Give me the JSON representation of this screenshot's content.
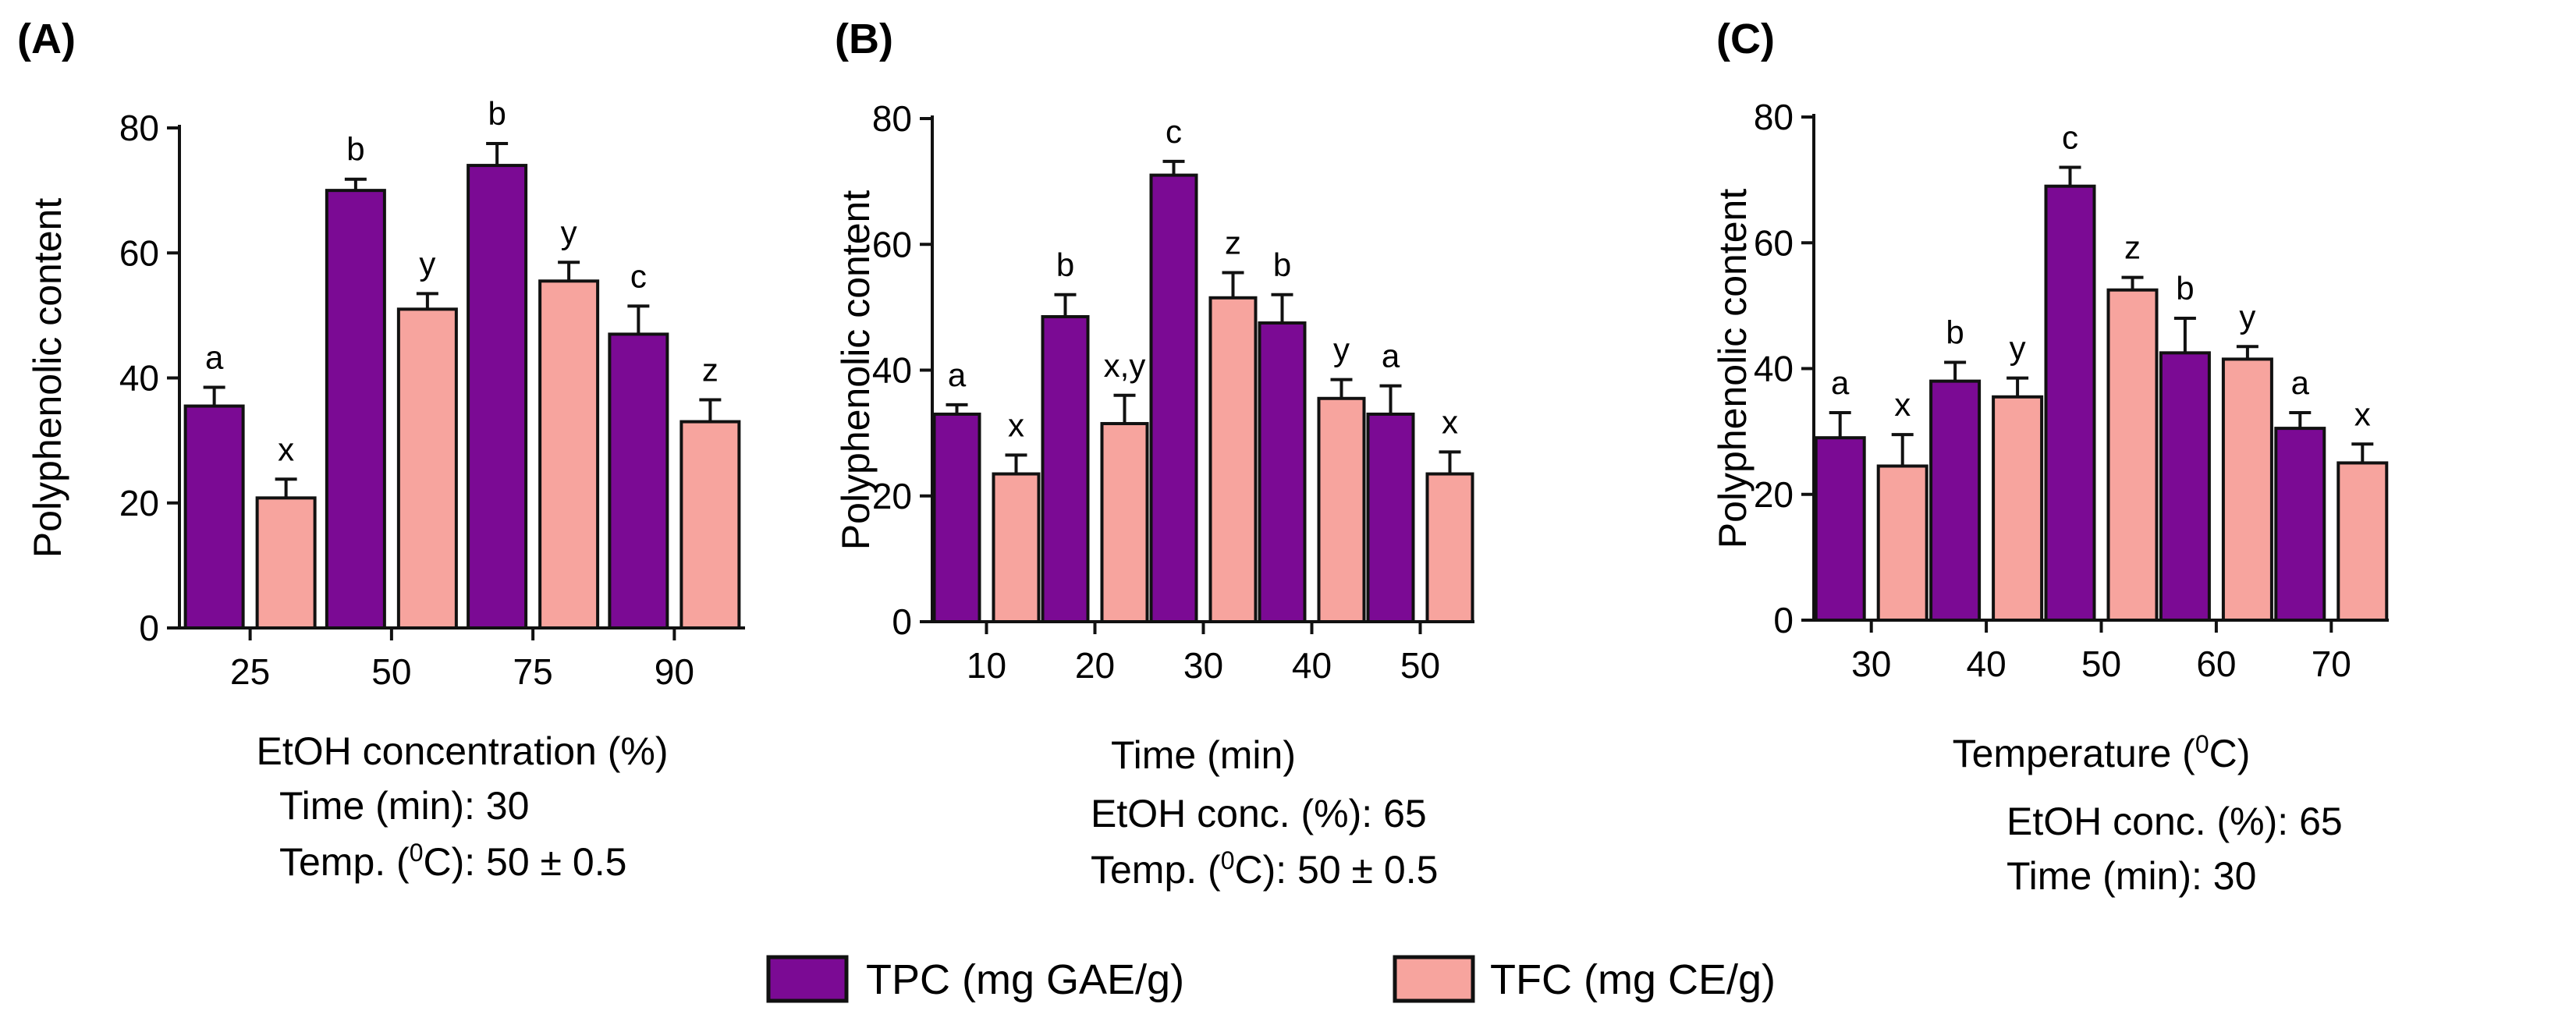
{
  "chart_data": [
    {
      "type": "bar",
      "panel": "(A)",
      "ylabel": "Polyphenolic content",
      "xlabel": "EtOH concentration (%)",
      "ylim": [
        0,
        80
      ],
      "yticks": [
        "0",
        "20",
        "40",
        "60",
        "80"
      ],
      "categories": [
        "25",
        "50",
        "75",
        "90"
      ],
      "series": [
        {
          "name": "TPC (mg GAE/g)",
          "values": [
            35.5,
            70,
            74,
            47
          ],
          "errors": [
            3,
            1.8,
            3.5,
            4.5
          ],
          "letters": [
            "a",
            "b",
            "b",
            "c"
          ]
        },
        {
          "name": "TFC (mg CE/g)",
          "values": [
            20.8,
            51,
            55.5,
            33
          ],
          "errors": [
            3,
            2.5,
            3,
            3.5
          ],
          "letters": [
            "x",
            "y",
            "y",
            "z"
          ]
        }
      ],
      "conditions": [
        "Time (min): 30",
        "Temp. (0C): 50 ± 0.5"
      ]
    },
    {
      "type": "bar",
      "panel": "(B)",
      "ylabel": "Polyphenolic content",
      "xlabel": "Time (min)",
      "ylim": [
        0,
        80
      ],
      "yticks": [
        "0",
        "20",
        "40",
        "60",
        "80"
      ],
      "categories": [
        "10",
        "20",
        "30",
        "40",
        "50"
      ],
      "series": [
        {
          "name": "TPC (mg GAE/g)",
          "values": [
            33,
            48.5,
            71,
            47.5,
            33
          ],
          "errors": [
            1.5,
            3.5,
            2.2,
            4.5,
            4.5
          ],
          "letters": [
            "a",
            "b",
            "c",
            "b",
            "a"
          ]
        },
        {
          "name": "TFC (mg CE/g)",
          "values": [
            23.5,
            31.5,
            51.5,
            35.5,
            23.5
          ],
          "errors": [
            3,
            4.5,
            4,
            3,
            3.5
          ],
          "letters": [
            "x",
            "x,y",
            "z",
            "y",
            "x"
          ]
        }
      ],
      "conditions": [
        "EtOH conc. (%): 65",
        "Temp. (0C): 50 ± 0.5"
      ]
    },
    {
      "type": "bar",
      "panel": "(C)",
      "ylabel": "Polyphenolic content",
      "xlabel": "Temperature (0C)",
      "ylim": [
        0,
        80
      ],
      "yticks": [
        "0",
        "20",
        "40",
        "60",
        "80"
      ],
      "categories": [
        "30",
        "40",
        "50",
        "60",
        "70"
      ],
      "series": [
        {
          "name": "TPC (mg GAE/g)",
          "values": [
            29,
            38,
            69,
            42.5,
            30.5
          ],
          "errors": [
            4,
            3,
            3,
            5.5,
            2.5
          ],
          "letters": [
            "a",
            "b",
            "c",
            "b",
            "a"
          ]
        },
        {
          "name": "TFC (mg CE/g)",
          "values": [
            24.5,
            35.5,
            52.5,
            41.5,
            25
          ],
          "errors": [
            5,
            3,
            2,
            2,
            3
          ],
          "letters": [
            "x",
            "y",
            "z",
            "y",
            "x"
          ]
        }
      ],
      "conditions": [
        "EtOH conc. (%): 65",
        "Time (min): 30"
      ]
    }
  ],
  "legend": [
    {
      "label": "TPC (mg GAE/g)",
      "color": "#7b0a94"
    },
    {
      "label": "TFC (mg CE/g)",
      "color": "#f7a49e"
    }
  ],
  "colors": {
    "tpc": "#7b0a94",
    "tfc": "#f7a49e",
    "axis": "#111111"
  }
}
